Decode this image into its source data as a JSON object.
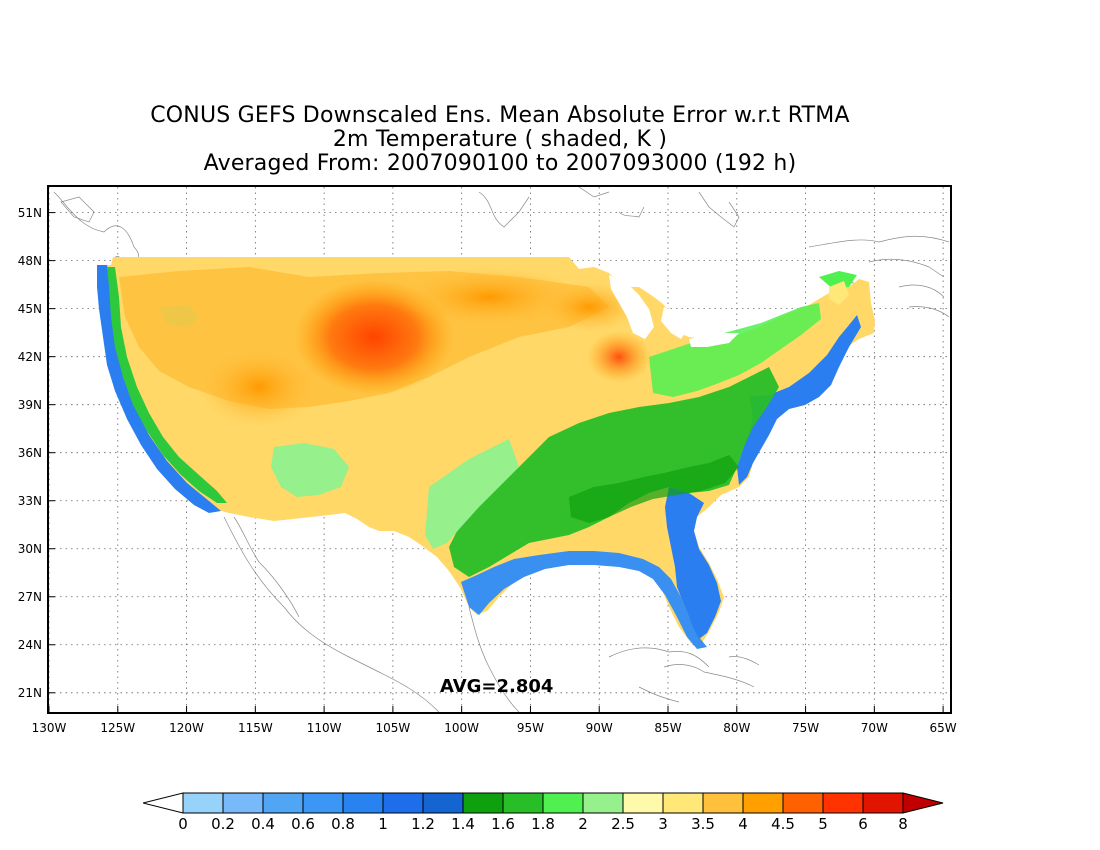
{
  "title": {
    "line1": "CONUS GEFS Downscaled Ens. Mean Absolute Error w.r.t RTMA",
    "line2": "2m Temperature ( shaded, K )",
    "line3": "Averaged From: 2007090100 to 2007093000 (192 h)"
  },
  "map": {
    "region": "CONUS",
    "lat_ticks": [
      "51N",
      "48N",
      "45N",
      "42N",
      "39N",
      "36N",
      "33N",
      "30N",
      "27N",
      "24N",
      "21N"
    ],
    "lon_ticks": [
      "130W",
      "125W",
      "120W",
      "115W",
      "110W",
      "105W",
      "100W",
      "95W",
      "90W",
      "85W",
      "80W",
      "75W",
      "70W",
      "65W"
    ],
    "lat_values": [
      51,
      48,
      45,
      42,
      39,
      36,
      33,
      30,
      27,
      24,
      21
    ],
    "lon_values": [
      -130,
      -125,
      -120,
      -115,
      -110,
      -105,
      -100,
      -95,
      -90,
      -85,
      -80,
      -75,
      -70,
      -65
    ],
    "lat_range": [
      19.8,
      52.6
    ],
    "lon_range": [
      -130,
      -64.5
    ],
    "grid": "dotted",
    "avg_text": "AVG=2.804"
  },
  "colorbar": {
    "labels": [
      "0",
      "0.2",
      "0.4",
      "0.6",
      "0.8",
      "1",
      "1.2",
      "1.4",
      "1.6",
      "1.8",
      "2",
      "2.5",
      "3",
      "3.5",
      "4",
      "4.5",
      "5",
      "6",
      "8"
    ],
    "colors": [
      "#ffffff",
      "#96d2fa",
      "#78b9fa",
      "#50a5f5",
      "#3c96f5",
      "#2882f0",
      "#1e6eeb",
      "#1464d2",
      "#0fa00f",
      "#28be28",
      "#50f050",
      "#96f08c",
      "#fffaaa",
      "#ffe878",
      "#ffc03c",
      "#ffa000",
      "#ff6000",
      "#ff3200",
      "#e11400",
      "#c00000"
    ]
  }
}
